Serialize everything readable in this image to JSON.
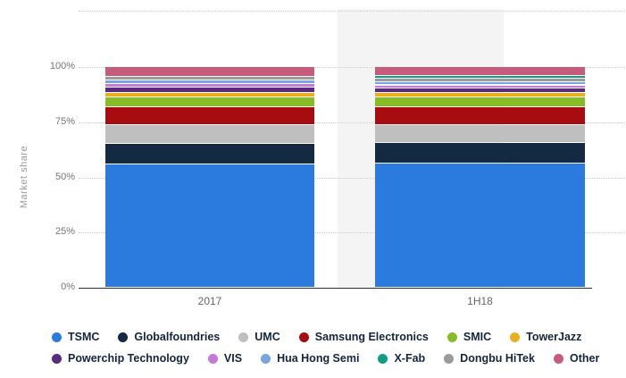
{
  "chart_data": {
    "type": "bar",
    "stacked": true,
    "categories": [
      "2017",
      "1H18"
    ],
    "ylabel": "Market share",
    "ylim": [
      0,
      100
    ],
    "y_ticks": [
      {
        "value": 100,
        "label": "100%"
      },
      {
        "value": 75,
        "label": "75%"
      },
      {
        "value": 50,
        "label": "50%"
      },
      {
        "value": 25,
        "label": "25%"
      },
      {
        "value": 0,
        "label": "0%"
      }
    ],
    "grid": "dotted-horizontal",
    "legend_position": "bottom",
    "series": [
      {
        "name": "TSMC",
        "color": "#2b7bdf",
        "values": [
          55.9,
          56.1
        ]
      },
      {
        "name": "Globalfoundries",
        "color": "#132a42",
        "values": [
          9.4,
          9.4
        ]
      },
      {
        "name": "UMC",
        "color": "#bfbfbf",
        "values": [
          8.3,
          8.3
        ]
      },
      {
        "name": "Samsung Electronics",
        "color": "#a60c10",
        "values": [
          8.0,
          7.8
        ]
      },
      {
        "name": "SMIC",
        "color": "#86bc25",
        "values": [
          4.7,
          4.6
        ]
      },
      {
        "name": "TowerJazz",
        "color": "#e9b01e",
        "values": [
          2.1,
          2.0
        ]
      },
      {
        "name": "Powerchip Technology",
        "color": "#5b2a7e",
        "values": [
          2.4,
          2.1
        ]
      },
      {
        "name": "VIS",
        "color": "#c678d9",
        "values": [
          1.5,
          1.4
        ]
      },
      {
        "name": "Hua Hong Semi",
        "color": "#78a4e0",
        "values": [
          1.7,
          1.5
        ]
      },
      {
        "name": "Dongbu HiTek",
        "color": "#9b9b9b",
        "values": [
          1.5,
          1.4
        ]
      },
      {
        "name": "X-Fab",
        "color": "#0d9f85",
        "values": [
          0.0,
          1.3
        ]
      },
      {
        "name": "Other",
        "color": "#c65b7c",
        "values": [
          4.5,
          4.1
        ]
      }
    ],
    "legend_rows": [
      [
        "TSMC",
        "Globalfoundries",
        "UMC",
        "Samsung Electronics",
        "SMIC",
        "TowerJazz"
      ],
      [
        "Powerchip Technology",
        "VIS",
        "Hua Hong Semi",
        "X-Fab",
        "Dongbu HiTek",
        "Other"
      ]
    ],
    "highlighted_category": "1H18"
  }
}
